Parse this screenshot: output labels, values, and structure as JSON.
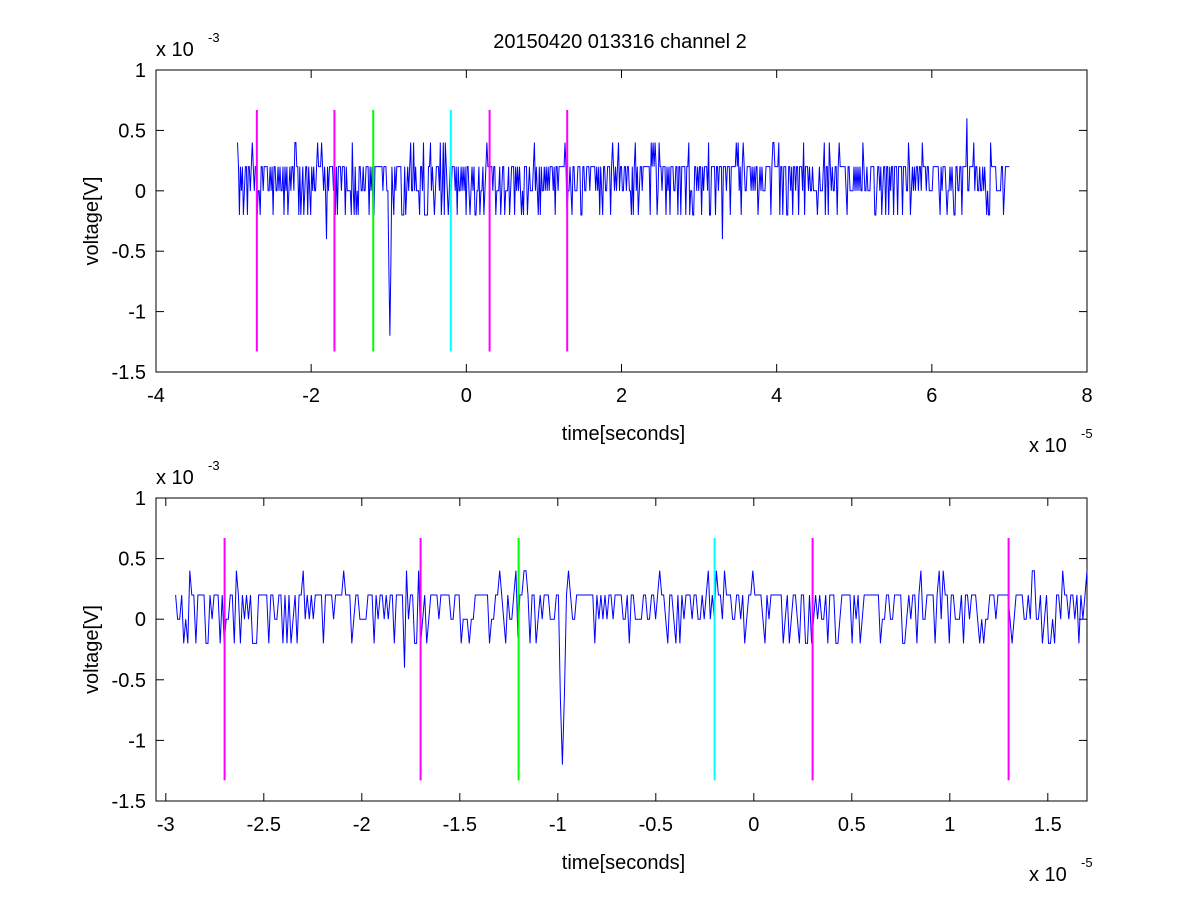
{
  "figure": {
    "background": "#ffffff",
    "title": "20150420 013316 channel 2"
  },
  "chart_data": [
    {
      "type": "line",
      "xlabel": "time[seconds]",
      "ylabel": "voltage[V]",
      "x_exponent_label": "x 10",
      "x_exponent": "-5",
      "y_exponent_label": "x 10",
      "y_exponent": "-3",
      "xlim": [
        -4,
        8
      ],
      "ylim": [
        -1.5,
        1
      ],
      "xticks": [
        -4,
        -2,
        0,
        2,
        4,
        6,
        8
      ],
      "xtick_labels": [
        "-4",
        "-2",
        "0",
        "2",
        "4",
        "6",
        "8"
      ],
      "yticks": [
        -1.5,
        -1,
        -0.5,
        0,
        0.5,
        1
      ],
      "ytick_labels": [
        "-1.5",
        "-1",
        "-0.5",
        "0",
        "0.5",
        "1"
      ],
      "grid": false,
      "trace": {
        "color": "#0000ff",
        "x_range": [
          -2.95,
          7.0
        ],
        "base": 0.2,
        "levels": [
          0.2,
          0,
          -0.2
        ],
        "spikes": [
          {
            "x": -1.8,
            "y": -0.4
          },
          {
            "x": -0.98,
            "y": -1.2
          },
          {
            "x": 3.3,
            "y": -0.4
          },
          {
            "x": 6.45,
            "y": 0.6
          }
        ]
      },
      "markers": [
        {
          "x": -2.7,
          "color": "#ff00ff",
          "ymin": -1.33,
          "ymax": 0.67
        },
        {
          "x": -1.7,
          "color": "#ff00ff",
          "ymin": -1.33,
          "ymax": 0.67
        },
        {
          "x": -1.2,
          "color": "#00ff00",
          "ymin": -1.33,
          "ymax": 0.67
        },
        {
          "x": -0.2,
          "color": "#00ffff",
          "ymin": -1.33,
          "ymax": 0.67
        },
        {
          "x": 0.3,
          "color": "#ff00ff",
          "ymin": -1.33,
          "ymax": 0.67
        },
        {
          "x": 1.3,
          "color": "#ff00ff",
          "ymin": -1.33,
          "ymax": 0.67
        }
      ]
    },
    {
      "type": "line",
      "xlabel": "time[seconds]",
      "ylabel": "voltage[V]",
      "x_exponent_label": "x 10",
      "x_exponent": "-5",
      "y_exponent_label": "x 10",
      "y_exponent": "-3",
      "xlim": [
        -3.05,
        1.7
      ],
      "ylim": [
        -1.5,
        1
      ],
      "xticks": [
        -3,
        -2.5,
        -2,
        -1.5,
        -1,
        -0.5,
        0,
        0.5,
        1,
        1.5
      ],
      "xtick_labels": [
        "-3",
        "-2.5",
        "-2",
        "-1.5",
        "-1",
        "-0.5",
        "0",
        "0.5",
        "1",
        "1.5"
      ],
      "yticks": [
        -1.5,
        -1,
        -0.5,
        0,
        0.5,
        1
      ],
      "ytick_labels": [
        "-1.5",
        "-1",
        "-0.5",
        "0",
        "0.5",
        "1"
      ],
      "grid": false,
      "trace": {
        "color": "#0000ff",
        "x_range": [
          -2.95,
          1.7
        ],
        "base": 0.2,
        "levels": [
          0.2,
          0,
          -0.2
        ],
        "spikes": [
          {
            "x": -2.88,
            "y": 0.4
          },
          {
            "x": -1.78,
            "y": -0.4
          },
          {
            "x": -1.2,
            "y": -0.15
          },
          {
            "x": -0.98,
            "y": -1.2
          },
          {
            "x": -0.95,
            "y": 0.4
          },
          {
            "x": 1.7,
            "y": 0.4
          }
        ]
      },
      "markers": [
        {
          "x": -2.7,
          "color": "#ff00ff",
          "ymin": -1.33,
          "ymax": 0.67
        },
        {
          "x": -1.7,
          "color": "#ff00ff",
          "ymin": -1.33,
          "ymax": 0.67
        },
        {
          "x": -1.2,
          "color": "#00ff00",
          "ymin": -1.33,
          "ymax": 0.67
        },
        {
          "x": -0.2,
          "color": "#00ffff",
          "ymin": -1.33,
          "ymax": 0.67
        },
        {
          "x": 0.3,
          "color": "#ff00ff",
          "ymin": -1.33,
          "ymax": 0.67
        },
        {
          "x": 1.3,
          "color": "#ff00ff",
          "ymin": -1.33,
          "ymax": 0.67
        }
      ]
    }
  ]
}
